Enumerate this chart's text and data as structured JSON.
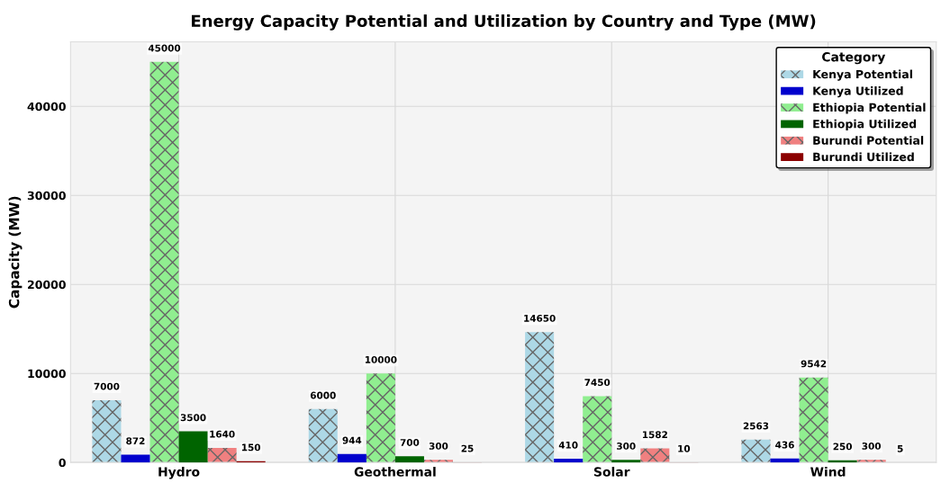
{
  "chart_data": {
    "type": "bar",
    "title": "Energy Capacity Potential and Utilization by Country and Type (MW)",
    "ylabel": "Capacity (MW)",
    "legend_title": "Category",
    "categories": [
      "Hydro",
      "Geothermal",
      "Solar",
      "Wind"
    ],
    "series": [
      {
        "name": "Kenya Potential",
        "color": "#add8e6",
        "values": [
          7000,
          6000,
          14650,
          2563
        ]
      },
      {
        "name": "Kenya Utilized",
        "color": "#0000cd",
        "values": [
          872,
          944,
          410,
          436
        ]
      },
      {
        "name": "Ethiopia Potential",
        "color": "#90ee90",
        "values": [
          45000,
          10000,
          7450,
          9542
        ]
      },
      {
        "name": "Ethiopia Utilized",
        "color": "#006400",
        "values": [
          3500,
          700,
          300,
          250
        ]
      },
      {
        "name": "Burundi Potential",
        "color": "#f08080",
        "values": [
          1640,
          300,
          1582,
          300
        ]
      },
      {
        "name": "Burundi Utilized",
        "color": "#8b0000",
        "values": [
          150,
          25,
          10,
          5
        ]
      }
    ],
    "ylim": [
      0,
      47250
    ],
    "yticks": [
      0,
      10000,
      20000,
      30000,
      40000
    ],
    "grid": true,
    "legend": "top right",
    "data_labels": true
  }
}
